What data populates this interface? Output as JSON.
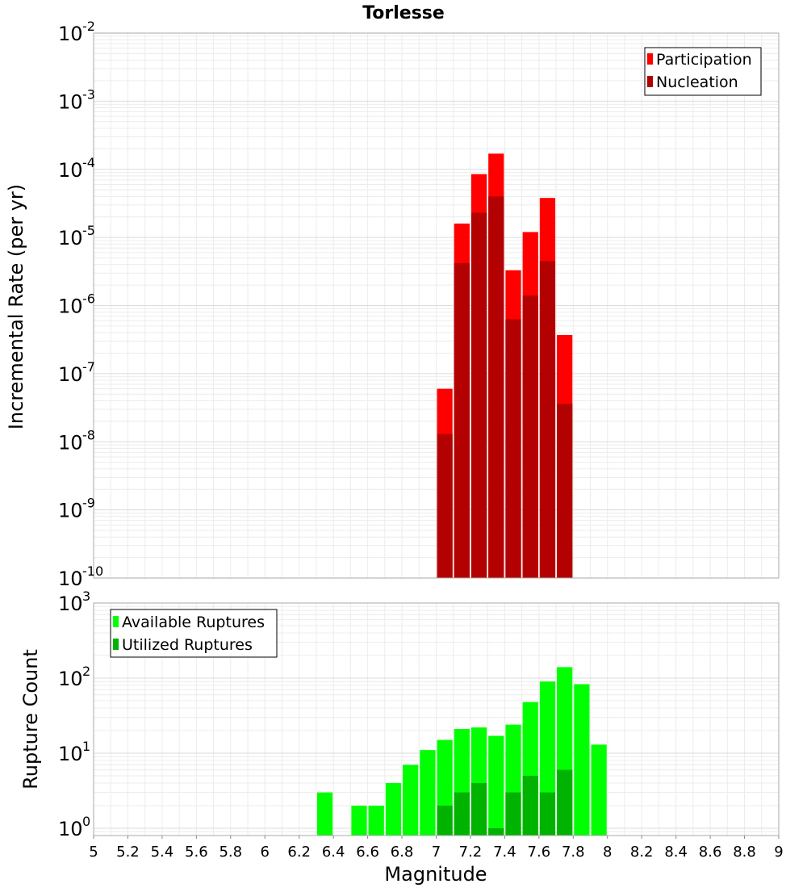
{
  "chart_data": [
    {
      "type": "bar",
      "title": "Torlesse",
      "xlabel": "",
      "ylabel": "Incremental Rate (per yr)",
      "y_scale": "log",
      "ylim": [
        1e-10,
        0.01
      ],
      "xlim": [
        5,
        9
      ],
      "y_tick_bases": [
        "10",
        "10",
        "10",
        "10",
        "10",
        "10",
        "10",
        "10",
        "10"
      ],
      "y_tick_exps": [
        "-10",
        "-9",
        "-8",
        "-7",
        "-6",
        "-5",
        "-4",
        "-3",
        "-2"
      ],
      "grid": true,
      "legend_position": "top-right",
      "bin_width": 0.1,
      "x": [
        7.05,
        7.15,
        7.25,
        7.35,
        7.45,
        7.55,
        7.65,
        7.75
      ],
      "series": [
        {
          "name": "Participation",
          "color": "#ff0000",
          "values": [
            6e-08,
            1.6e-05,
            8.5e-05,
            0.00017,
            3.3e-06,
            1.2e-05,
            3.8e-05,
            3.7e-07
          ]
        },
        {
          "name": "Nucleation",
          "color": "#b30000",
          "values": [
            1.3e-08,
            4.2e-06,
            2.3e-05,
            4e-05,
            6.3e-07,
            1.4e-06,
            4.5e-06,
            3.6e-08
          ]
        }
      ]
    },
    {
      "type": "bar",
      "title": "",
      "xlabel": "Magnitude",
      "ylabel": "Rupture Count",
      "y_scale": "log",
      "ylim": [
        0.8,
        1000
      ],
      "xlim": [
        5,
        9
      ],
      "x_ticks": [
        "5",
        "5.2",
        "5.4",
        "5.6",
        "5.8",
        "6",
        "6.2",
        "6.4",
        "6.6",
        "6.8",
        "7",
        "7.2",
        "7.4",
        "7.6",
        "7.8",
        "8",
        "8.2",
        "8.4",
        "8.6",
        "8.8",
        "9"
      ],
      "y_tick_bases": [
        "10",
        "10",
        "10",
        "10"
      ],
      "y_tick_exps": [
        "0",
        "1",
        "2",
        "3"
      ],
      "grid": true,
      "legend_position": "top-left",
      "bin_width": 0.1,
      "series": [
        {
          "name": "Available Ruptures",
          "color": "#00ff00",
          "x": [
            6.35,
            6.55,
            6.65,
            6.75,
            6.85,
            6.95,
            7.05,
            7.15,
            7.25,
            7.35,
            7.45,
            7.55,
            7.65,
            7.75,
            7.85,
            7.95
          ],
          "values": [
            3,
            2,
            2,
            4,
            7,
            11,
            15,
            21,
            22,
            17,
            24,
            48,
            90,
            140,
            83,
            13
          ]
        },
        {
          "name": "Utilized Ruptures",
          "color": "#00b300",
          "x": [
            7.05,
            7.15,
            7.25,
            7.35,
            7.45,
            7.55,
            7.65,
            7.75
          ],
          "values": [
            2,
            3,
            4,
            1,
            3,
            5,
            3,
            6
          ]
        }
      ]
    }
  ]
}
